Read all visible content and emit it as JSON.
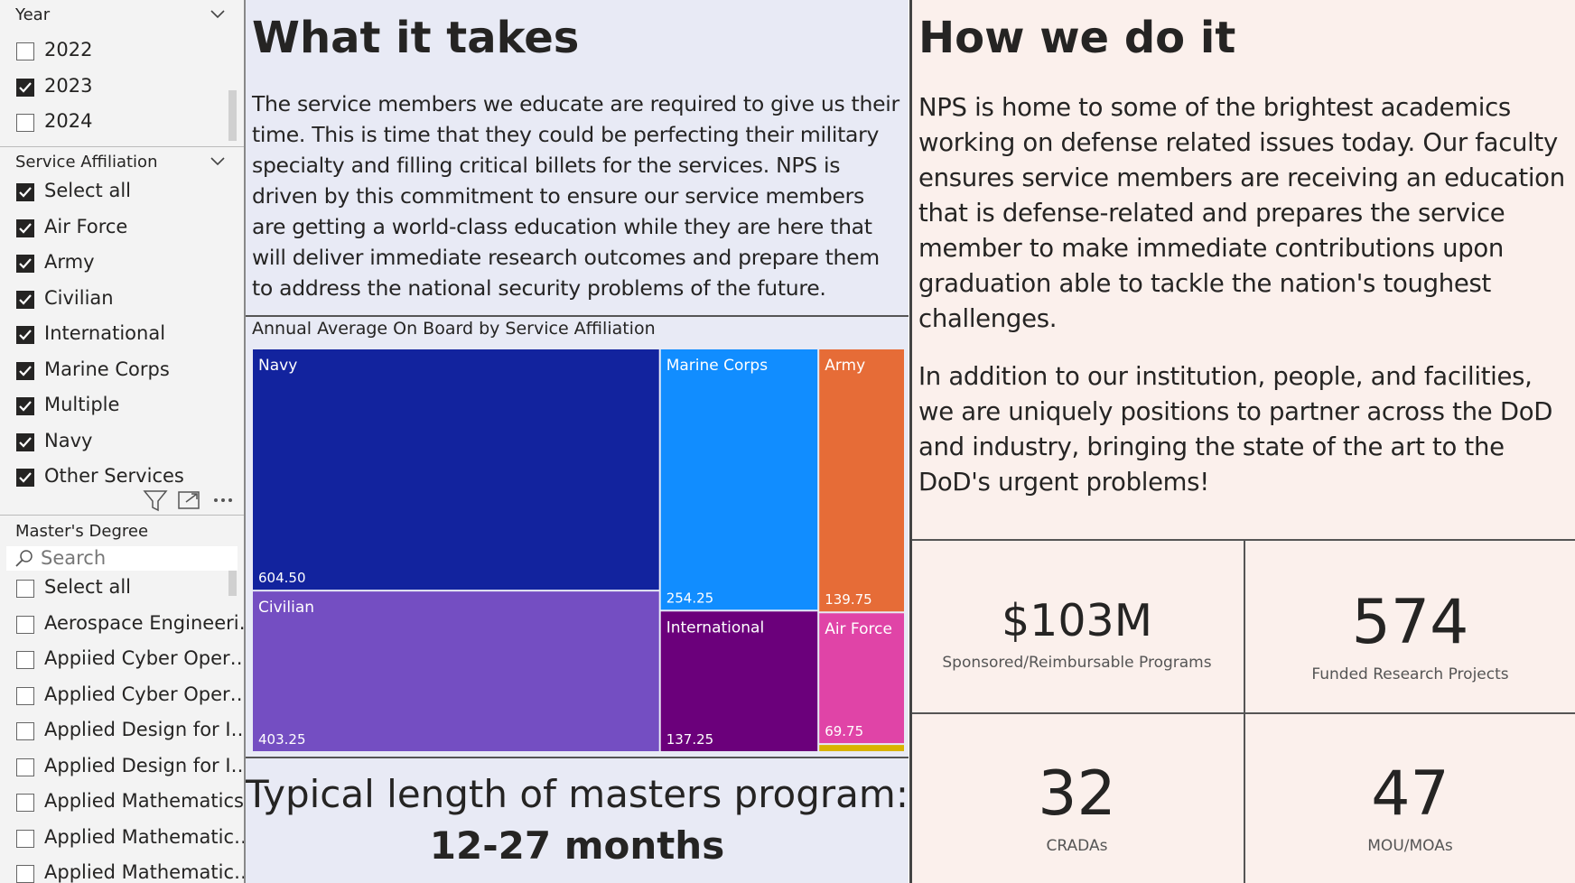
{
  "slicers": [
    {
      "title": "Year",
      "items": [
        {
          "label": "2022",
          "checked": false
        },
        {
          "label": "2023",
          "checked": true
        },
        {
          "label": "2024",
          "checked": false
        }
      ]
    },
    {
      "title": "Service Affiliation",
      "items": [
        {
          "label": "Select all",
          "checked": true
        },
        {
          "label": "Air Force",
          "checked": true
        },
        {
          "label": "Army",
          "checked": true
        },
        {
          "label": "Civilian",
          "checked": true
        },
        {
          "label": "International",
          "checked": true
        },
        {
          "label": "Marine Corps",
          "checked": true
        },
        {
          "label": "Multiple",
          "checked": true
        },
        {
          "label": "Navy",
          "checked": true
        },
        {
          "label": "Other Services",
          "checked": true
        }
      ]
    },
    {
      "title": "Master's Degree",
      "search": "Search",
      "items": [
        {
          "label": "Select all",
          "checked": false
        },
        {
          "label": "Aerospace Engineeri…",
          "checked": false
        },
        {
          "label": "Appiied Cyber Oper…",
          "checked": false
        },
        {
          "label": "Applied Cyber Oper…",
          "checked": false
        },
        {
          "label": "Applied Design for I…",
          "checked": false
        },
        {
          "label": "Applied Design for I…",
          "checked": false
        },
        {
          "label": "Applied Mathematics",
          "checked": false
        },
        {
          "label": "Applied Mathematic…",
          "checked": false
        },
        {
          "label": "Applied Mathematic…",
          "checked": false
        }
      ]
    }
  ],
  "what_it_takes": {
    "title": "What it takes",
    "text": "The service members we educate are required to give us their time. This is time that they could be perfecting their military specialty and filling critical billets for the services. NPS is driven by this commitment to ensure our service members are getting a world-class education while they are here that will deliver immediate research outcomes and prepare them to address the national security problems of the future."
  },
  "chart_data": {
    "type": "treemap",
    "title": "Annual Average On Board by Service Affiliation",
    "categories": [
      "Navy",
      "Civilian",
      "Marine Corps",
      "International",
      "Army",
      "Air Force",
      null
    ],
    "values": [
      604.5,
      403.25,
      254.25,
      137.25,
      139.75,
      69.75,
      4.25
    ],
    "value_labels": [
      "604.50",
      "403.25",
      "254.25",
      "137.25",
      "139.75",
      "69.75",
      null
    ],
    "colors": [
      "#12239e",
      "#744ec2",
      "#118dff",
      "#6b007b",
      "#e66c37",
      "#e044a7",
      "#d9b300"
    ]
  },
  "program_length": {
    "label": "Typical length of masters program:",
    "value": "12-27 months"
  },
  "how_we_do_it": {
    "title": "How we do it",
    "paragraphs": [
      "NPS is home to some of the brightest academics working on defense related issues today. Our faculty ensures service members are receiving an education that is defense-related and prepares the service member to make immediate contributions upon graduation able to tackle the nation's toughest challenges.",
      "In addition to our institution, people, and facilities, we are uniquely positions to partner across the DoD and industry, bringing the state of the art to the DoD's urgent problems!"
    ]
  },
  "kpis": [
    {
      "value": "$103M",
      "label": "Sponsored/Reimbursable Programs"
    },
    {
      "value": "574",
      "label": "Funded Research Projects"
    },
    {
      "value": "32",
      "label": "CRADAs"
    },
    {
      "value": "47",
      "label": "MOU/MOAs"
    }
  ]
}
